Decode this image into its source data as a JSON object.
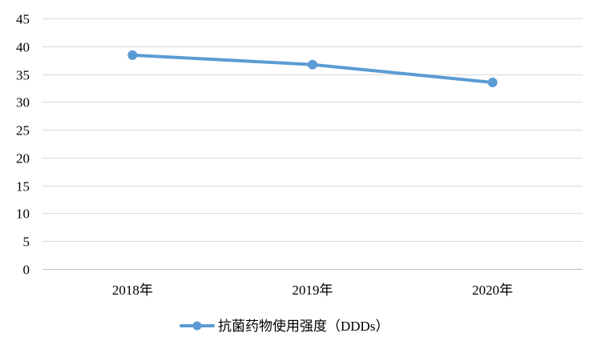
{
  "chart_data": {
    "type": "line",
    "categories": [
      "2018年",
      "2019年",
      "2020年"
    ],
    "series": [
      {
        "name": "抗菌药物使用强度（DDDs）",
        "values": [
          38.4,
          36.7,
          33.5
        ],
        "color": "#5b9bd5"
      }
    ],
    "title": "",
    "xlabel": "",
    "ylabel": "",
    "ylim": [
      0,
      45
    ],
    "y_ticks": [
      0,
      5,
      10,
      15,
      20,
      25,
      30,
      35,
      40,
      45
    ],
    "grid": true,
    "legend": "bottom-center"
  }
}
